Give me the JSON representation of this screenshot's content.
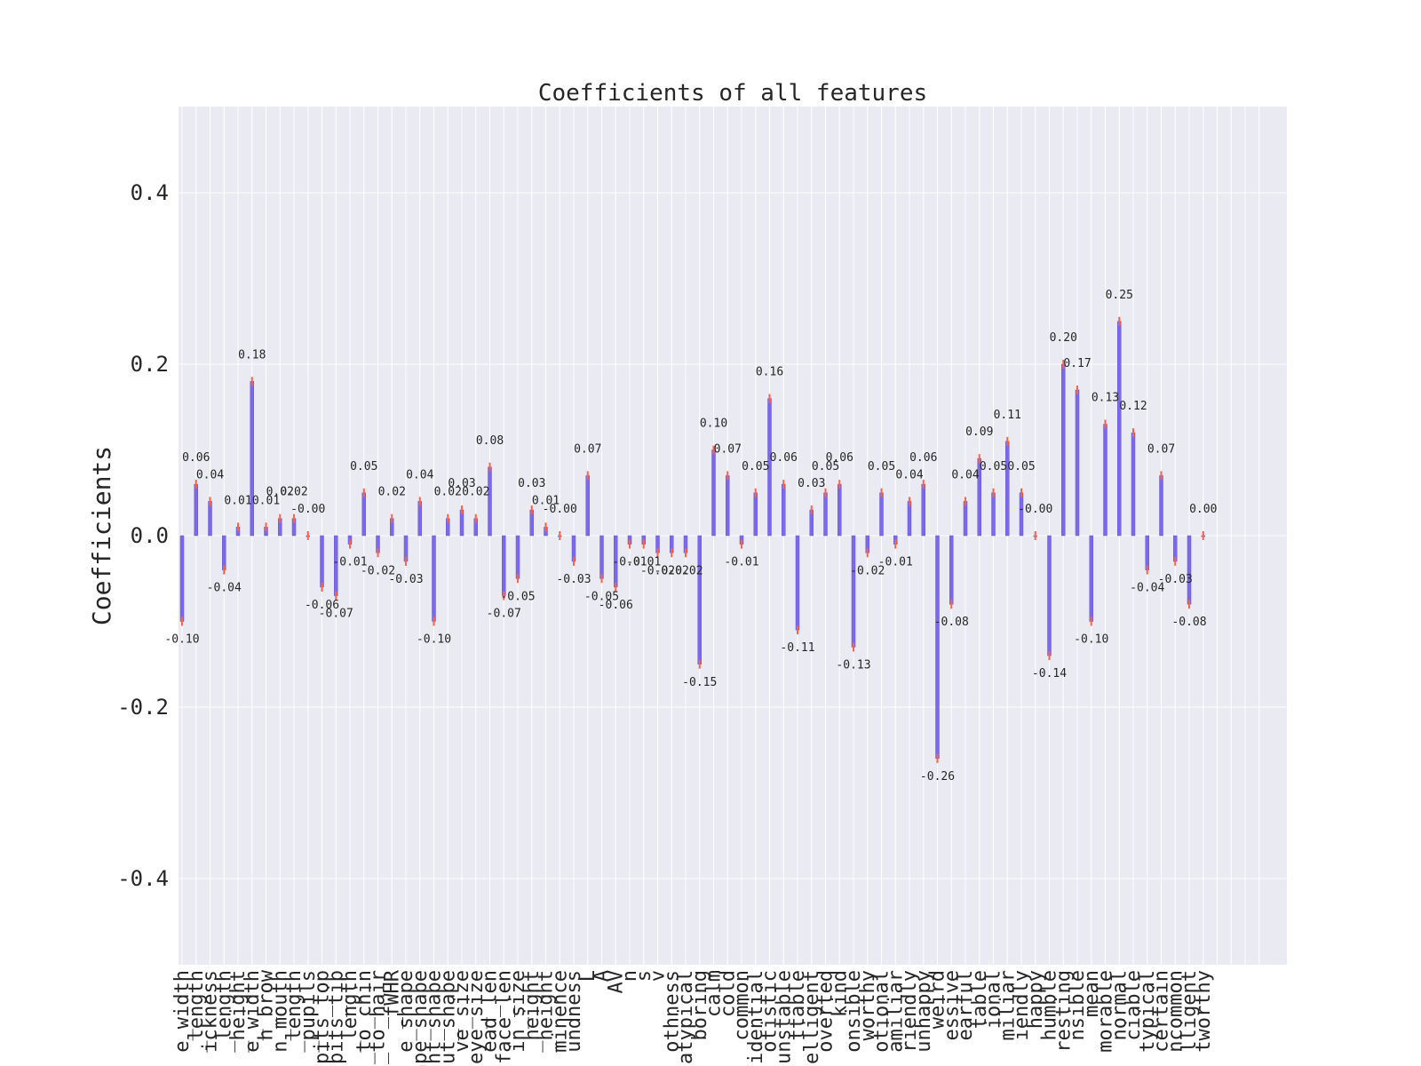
{
  "colors": {
    "plot_background": "#EAEAF2",
    "grid": "#ffffff",
    "bar": "#7B68EE",
    "error_bar": "#FF6347",
    "text": "#262626"
  },
  "chart_data": {
    "type": "bar",
    "title": "Coefficients of all features",
    "ylabel": "Coefficients",
    "xlabel": "",
    "ylim": [
      -0.5,
      0.5
    ],
    "yticks": [
      -0.4,
      -0.2,
      0.0,
      0.2,
      0.4
    ],
    "ytick_labels": [
      "-0.4",
      "-0.2",
      "0.0",
      "0.2",
      "0.4"
    ],
    "grid": true,
    "error_bars": true,
    "xtick_labels": [
      "e_width",
      "_length",
      "ickness",
      "_length",
      "_height",
      "e_width",
      "h_brow",
      "n_mouth",
      "_length",
      "_pupils",
      "pits_top",
      "pits_tip",
      "_length",
      "n_to_chin",
      "n_to_hair",
      "_fWHR",
      "e_shape",
      "nape_shape",
      "nt_shape",
      "ut_shape",
      "ve_size",
      "eye_size",
      "ead_len",
      "face_len",
      "in_size",
      "_height",
      "_height",
      "minence",
      "undness",
      "L",
      "A",
      "AV",
      "n",
      "s",
      "v",
      "othness",
      "atypical",
      "boring",
      "calm",
      "cold",
      "common",
      "fidential",
      "otistic",
      "unstable",
      "ttable",
      "elligent",
      "overted",
      "kind",
      "onsible",
      "worthy",
      "otional",
      "amiliar",
      "riendly",
      "unhappy",
      "weird",
      "essive",
      "earful",
      "table",
      "ional",
      "miliar",
      "iendly",
      "happy",
      "humble",
      "resting",
      "nsible",
      "mean",
      "morable",
      "normal",
      "ciable",
      "typical",
      "certain",
      "ncommon",
      "lligent",
      "tworthy"
    ],
    "values": [
      -0.1,
      0.06,
      0.04,
      -0.04,
      0.01,
      0.18,
      0.01,
      0.02,
      0.02,
      -0.0,
      -0.06,
      -0.07,
      -0.01,
      0.05,
      -0.02,
      0.02,
      -0.03,
      0.04,
      -0.1,
      0.02,
      0.03,
      0.02,
      0.08,
      -0.07,
      -0.05,
      0.03,
      0.01,
      -0.0,
      -0.03,
      0.07,
      -0.05,
      -0.06,
      -0.01,
      -0.01,
      -0.02,
      -0.02,
      -0.02,
      -0.15,
      0.1,
      0.07,
      -0.01,
      0.05,
      0.16,
      0.06,
      -0.11,
      0.03,
      0.05,
      0.06,
      -0.13,
      -0.02,
      0.05,
      -0.01,
      0.04,
      0.06,
      -0.26,
      -0.08,
      0.04,
      0.09,
      0.05,
      0.11,
      0.05,
      -0.0,
      -0.14,
      0.2,
      0.17,
      -0.1,
      0.13,
      0.25,
      0.12,
      -0.04,
      0.07,
      -0.03,
      -0.08,
      0.0
    ],
    "data_labels": [
      "-0.10",
      "0.06",
      "0.04",
      "-0.04",
      "0.01",
      "0.18",
      "0.01",
      "0.02",
      "0.02",
      "-0.00",
      "-0.06",
      "-0.07",
      "-0.01",
      "0.05",
      "-0.02",
      "0.02",
      "-0.03",
      "0.04",
      "-0.10",
      "0.02",
      "0.03",
      "0.02",
      "0.08",
      "-0.07",
      "-0.05",
      "0.03",
      "0.01",
      "-0.00",
      "-0.03",
      "0.07",
      "-0.05",
      "-0.06",
      "-0.01",
      "-0.01",
      "-0.02",
      "-0.02",
      "-0.02",
      "-0.15",
      "0.10",
      "0.07",
      "-0.01",
      "0.05",
      "0.16",
      "0.06",
      "-0.11",
      "0.03",
      "0.05",
      "0.06",
      "-0.13",
      "-0.02",
      "0.05",
      "-0.01",
      "0.04",
      "0.06",
      "-0.26",
      "-0.08",
      "0.04",
      "0.09",
      "0.05",
      "0.11",
      "0.05",
      "-0.00",
      "-0.14",
      "0.20",
      "0.17",
      "-0.10",
      "0.13",
      "0.25",
      "0.12",
      "-0.04",
      "0.07",
      "-0.03",
      "-0.08",
      "0.00"
    ]
  }
}
